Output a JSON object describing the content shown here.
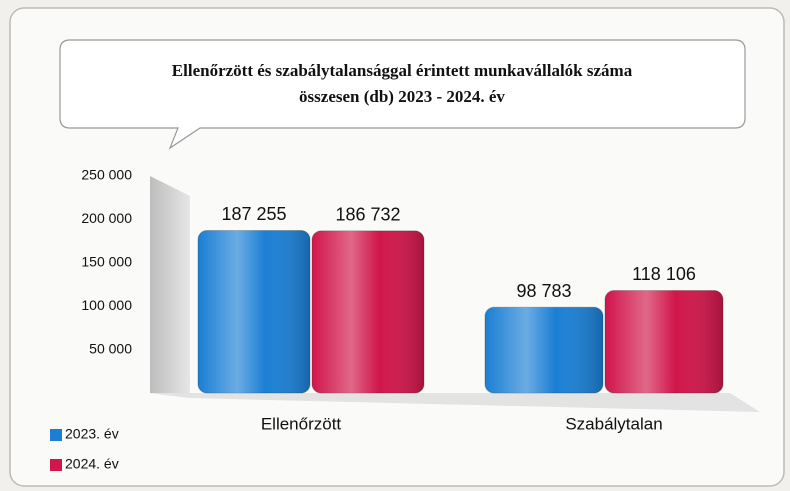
{
  "chart_data": {
    "type": "bar",
    "title": [
      "Ellenőrzött és szabálytalansággal érintett munkavállalók száma",
      "összesen (db)    2023 - 2024. év"
    ],
    "categories": [
      "Ellenőrzött",
      "Szabálytalan"
    ],
    "series": [
      {
        "name": "2023. év",
        "color": "#1b7fd4",
        "values": [
          187255,
          98783
        ],
        "value_labels": [
          "187 255",
          "98 783"
        ]
      },
      {
        "name": "2024. év",
        "color": "#d0164a",
        "values": [
          186732,
          118106
        ],
        "value_labels": [
          "186 732",
          "118 106"
        ]
      }
    ],
    "ylim": [
      0,
      250000
    ],
    "yticks": [
      {
        "value": 50000,
        "label": "50 000"
      },
      {
        "value": 100000,
        "label": "100 000"
      },
      {
        "value": 150000,
        "label": "150 000"
      },
      {
        "value": 200000,
        "label": "200 000"
      },
      {
        "value": 250000,
        "label": "250 000"
      }
    ],
    "legend": "bottom-left",
    "grid": false
  }
}
